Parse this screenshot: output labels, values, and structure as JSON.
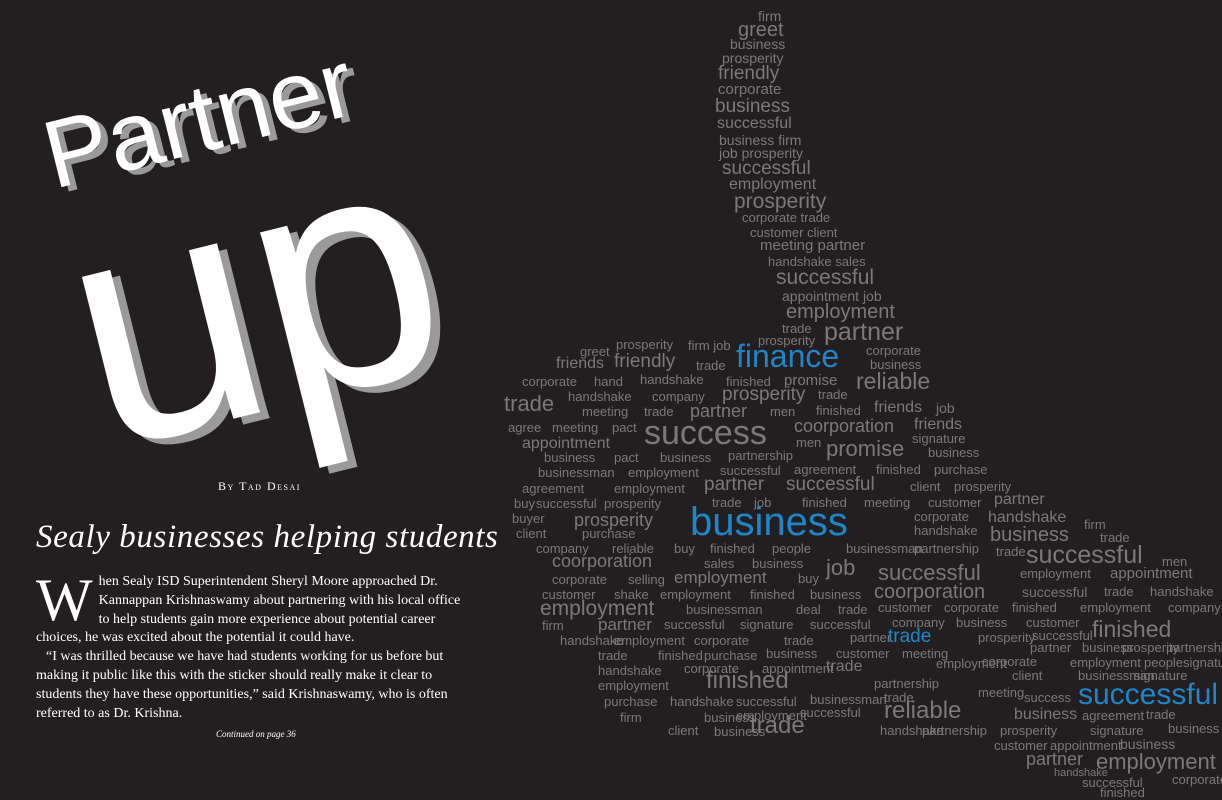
{
  "headline": {
    "line1": "Partner",
    "line2": "up"
  },
  "byline": "By Tad Desai",
  "subhead": "Sealy businesses helping students",
  "body": {
    "dropcap": "W",
    "para1_rest": "hen Sealy ISD Superintendent Sheryl Moore approached Dr. Kannappan Krishnaswamy about partnering with his local office to help students gain more experience about potential career choices, he was excited about the potential it could have.",
    "para2": "“I was thrilled because we have had students working for us before but making it public like this with the sticker should really make it clear to students they have these opportunities,” said Krishnaswamy, who is often referred to as Dr. Krishna."
  },
  "continued": "Continued on page 36",
  "colors": {
    "background": "#231f20",
    "text": "#ffffff",
    "cloud_gray": "#7a7878",
    "cloud_blue": "#1e86c8"
  },
  "word_cloud": {
    "words": [
      "firm",
      "greet",
      "business",
      "prosperity",
      "friendly",
      "corporate",
      "business",
      "successful",
      "business firm",
      "job prosperity",
      "successful",
      "employment",
      "prosperity",
      "corporate trade",
      "customer client",
      "meeting partner",
      "handshake sales",
      "successful",
      "appointment job",
      "employment",
      "trade",
      "partner",
      "greet",
      "prosperity",
      "firm job",
      "prosperity",
      "corporate",
      "friends",
      "friendly",
      "trade",
      "finance",
      "business",
      "corporate",
      "hand",
      "handshake",
      "finished",
      "promise",
      "reliable",
      "trade",
      "handshake",
      "company",
      "prosperity",
      "trade",
      "meeting",
      "trade",
      "partner",
      "men",
      "finished",
      "friends",
      "job",
      "agree",
      "meeting",
      "pact",
      "success",
      "coorporation",
      "friends",
      "appointment",
      "men",
      "signature",
      "business",
      "pact",
      "business",
      "partnership",
      "promise",
      "business",
      "businessman",
      "employment",
      "successful",
      "agreement",
      "finished",
      "purchase",
      "agreement",
      "employment",
      "partner",
      "successful",
      "client",
      "prosperity",
      "buy",
      "successful",
      "prosperity",
      "trade",
      "job",
      "finished",
      "meeting",
      "customer",
      "partner",
      "buyer",
      "business",
      "corporate",
      "handshake",
      "firm",
      "client",
      "purchase",
      "handshake",
      "trade",
      "prosperity",
      "business",
      "company",
      "reliable",
      "buy",
      "finished",
      "people",
      "businessman",
      "partnership",
      "trade",
      "coorporation",
      "sales",
      "business",
      "job",
      "successful",
      "men",
      "corporate",
      "selling",
      "employment",
      "buy",
      "successful",
      "employment",
      "appointment",
      "customer",
      "shake",
      "employment",
      "finished",
      "business",
      "coorporation",
      "successful",
      "trade",
      "handshake",
      "employment",
      "businessman",
      "deal",
      "trade",
      "customer",
      "corporate",
      "finished",
      "employment",
      "company",
      "firm",
      "partner",
      "successful",
      "signature",
      "successful",
      "company",
      "business",
      "customer",
      "finished",
      "handshake",
      "employment",
      "corporate",
      "trade",
      "partner",
      "trade",
      "prosperity",
      "successful",
      "partner",
      "trade",
      "finished",
      "purchase",
      "business",
      "customer",
      "meeting",
      "business",
      "prosperity",
      "partnership",
      "handshake",
      "corporate",
      "appointment",
      "trade",
      "employment",
      "corporate",
      "employment",
      "peoplesignature",
      "employment",
      "finished",
      "partnership",
      "client",
      "businessman",
      "signature",
      "purchase",
      "handshake",
      "successful",
      "businessman",
      "trade",
      "meeting",
      "success",
      "successful",
      "firm",
      "business",
      "employment",
      "successful",
      "reliable",
      "business",
      "agreement",
      "trade",
      "client",
      "business",
      "trade",
      "handshake",
      "partnership",
      "prosperity",
      "signature",
      "business",
      "customer",
      "appointment",
      "business",
      "partner",
      "employment",
      "handshake",
      "successful",
      "corporate",
      "finished"
    ]
  }
}
